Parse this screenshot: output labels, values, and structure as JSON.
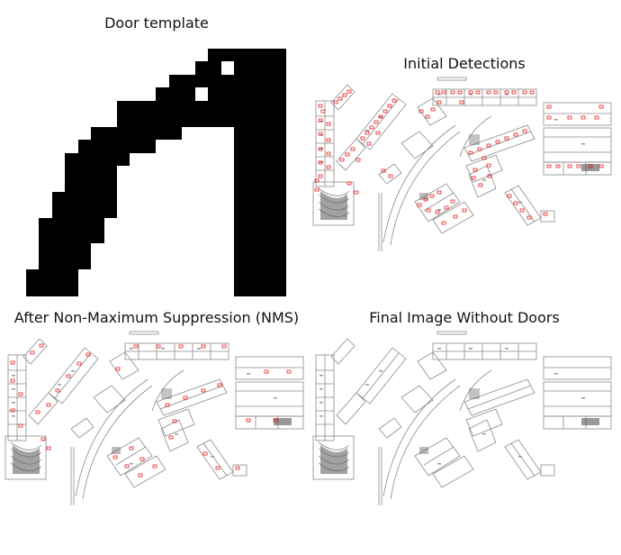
{
  "figure": {
    "panels": [
      {
        "id": "door-template",
        "title": "Door template",
        "content": "binary door template (black on white)"
      },
      {
        "id": "initial-detections",
        "title": "Initial Detections",
        "content": "floor plan with red detection boxes"
      },
      {
        "id": "after-nms",
        "title": "After Non-Maximum Suppression (NMS)",
        "content": "floor plan with fewer red detection boxes"
      },
      {
        "id": "final-image",
        "title": "Final Image Without Doors",
        "content": "floor plan with doors removed"
      }
    ]
  },
  "colors": {
    "template_fill": "#000000",
    "plan_line": "#777777",
    "detection_box": "#e00000",
    "background": "#ffffff"
  }
}
